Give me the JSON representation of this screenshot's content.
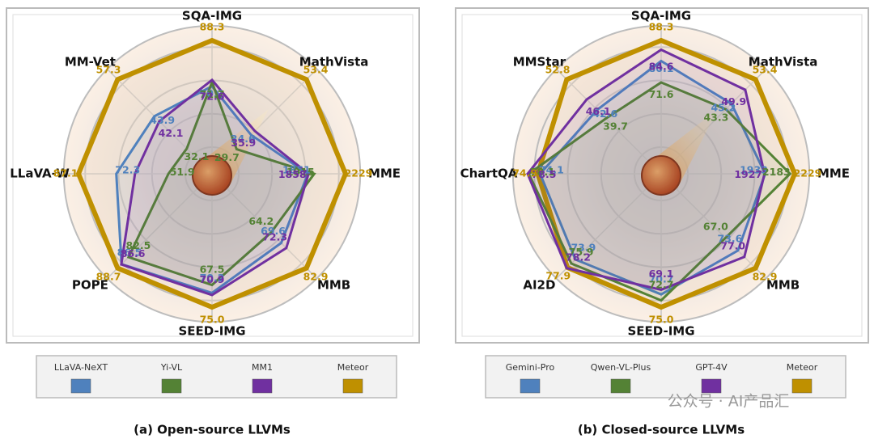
{
  "chart_data": [
    {
      "type": "radar",
      "caption": "(a) Open-source LLVMs",
      "axes": [
        "SQA-IMG",
        "MathVista",
        "MME",
        "MMB",
        "SEED-IMG",
        "POPE",
        "LLaVA-W",
        "MM-Vet"
      ],
      "series": [
        {
          "name": "LLaVA-NeXT",
          "color": "#4f81bd",
          "values": [
            70.1,
            34.6,
            1851,
            69.6,
            70.2,
            86.5,
            72.3,
            43.9
          ]
        },
        {
          "name": "Yi-VL",
          "color": "#548235",
          "values": [
            71.7,
            29.7,
            1915,
            64.2,
            67.5,
            82.5,
            51.9,
            32.1
          ]
        },
        {
          "name": "MM1",
          "color": "#7030a0",
          "values": [
            72.6,
            35.9,
            1858,
            72.3,
            70.9,
            86.6,
            65,
            42.1
          ],
          "value_labels": [
            "72.6",
            "35.9",
            "1858",
            "72.3",
            "70.9",
            "86.6",
            null,
            "42.1"
          ]
        },
        {
          "name": "Meteor",
          "color": "#bf9000",
          "values": [
            88.3,
            53.4,
            2229,
            82.9,
            75.0,
            88.7,
            87.1,
            57.3
          ],
          "value_labels": [
            "88.3",
            "53.4",
            "2229",
            "82.9",
            "75.0",
            "88.7",
            "87.1",
            "57.3"
          ]
        }
      ]
    },
    {
      "type": "radar",
      "caption": "(b) Closed-source LLVMs",
      "axes": [
        "SQA-IMG",
        "MathVista",
        "MME",
        "MMB",
        "SEED-IMG",
        "AI2D",
        "ChartQA",
        "MMStar"
      ],
      "series": [
        {
          "name": "Gemini-Pro",
          "color": "#4f81bd",
          "values": [
            80.1,
            45.2,
            1933,
            73.6,
            70.7,
            73.9,
            74.1,
            42.6
          ]
        },
        {
          "name": "Qwen-VL-Plus",
          "color": "#548235",
          "values": [
            71.6,
            43.3,
            2183,
            67.0,
            72.7,
            75.9,
            78.1,
            39.7
          ],
          "value_labels": [
            "71.6",
            "43.3",
            "2183",
            "67.0",
            "72.7",
            "75.9",
            "78.1",
            "39.7"
          ]
        },
        {
          "name": "GPT-4V",
          "color": "#7030a0",
          "values": [
            84.6,
            49.9,
            1927,
            77.0,
            69.1,
            78.2,
            78.5,
            46.1
          ],
          "value_labels": [
            "84.6",
            "49.9",
            "1927",
            "77.0",
            "69.1",
            "78.2",
            "78.5",
            "46.1"
          ]
        },
        {
          "name": "Meteor",
          "color": "#bf9000",
          "values": [
            88.3,
            53.4,
            2229,
            82.9,
            75.0,
            77.9,
            74.9,
            52.8
          ],
          "value_labels": [
            "88.3",
            "53.4",
            "2229",
            "82.9",
            "75.0",
            "77.9",
            "74.9",
            "52.8"
          ]
        }
      ]
    }
  ],
  "watermark": "公众号 · AI产品汇"
}
